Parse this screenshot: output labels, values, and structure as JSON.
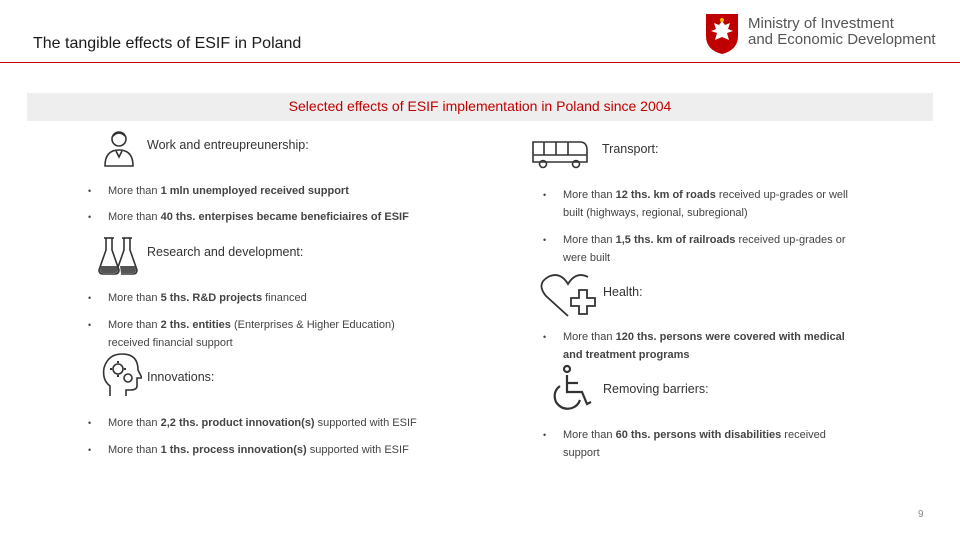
{
  "header": {
    "title": "The tangible effects of ESIF in Poland",
    "logo_line1": "Ministry of Investment",
    "logo_line2": "and Economic Development"
  },
  "band": {
    "title": "Selected effects of ESIF implementation in Poland since 2004"
  },
  "sections": {
    "work": {
      "title": "Work and entreupreunership:",
      "items": [
        {
          "pre": "More than ",
          "bold": "1 mln unemployed received support",
          "post": ""
        },
        {
          "pre": "More than ",
          "bold": "40 ths. enterpises became beneficiaires of ESIF",
          "post": ""
        }
      ]
    },
    "research": {
      "title": "Research and development:",
      "items": [
        {
          "pre": "More than ",
          "bold": "5 ths. R&D projects",
          "post": " financed"
        },
        {
          "pre": "More than ",
          "bold": "2 ths. entities",
          "post": " (Enterprises & Higher Education) received financial support"
        }
      ]
    },
    "innovations": {
      "title": "Innovations:",
      "items": [
        {
          "pre": "More than ",
          "bold": "2,2 ths. product innovation(s)",
          "post": " supported with ESIF"
        },
        {
          "pre": "More than ",
          "bold": "1 ths. process innovation(s)",
          "post": " supported with ESIF"
        }
      ]
    },
    "transport": {
      "title": "Transport:",
      "items": [
        {
          "pre": "More than ",
          "bold": "12 ths. km of roads",
          "post": " received up-grades or well built (highways, regional, subregional)"
        },
        {
          "pre": "More than ",
          "bold": "1,5 ths. km of railroads",
          "post": " received up-grades or were built"
        }
      ]
    },
    "health": {
      "title": "Health:",
      "items": [
        {
          "pre": "More than ",
          "bold": "120 ths. persons were covered with medical and treatment programs",
          "post": ""
        }
      ]
    },
    "barriers": {
      "title": "Removing barriers:",
      "items": [
        {
          "pre": "More than ",
          "bold": "60 ths. persons with disabilities",
          "post": " received support"
        }
      ]
    }
  },
  "footer": {
    "page": "9"
  },
  "colors": {
    "accent": "#c00000",
    "band": "#eeeeee"
  },
  "icons": [
    "person-icon",
    "flask-icon",
    "head-gears-icon",
    "bus-icon",
    "heart-cross-icon",
    "wheelchair-icon",
    "eagle-emblem-icon"
  ]
}
